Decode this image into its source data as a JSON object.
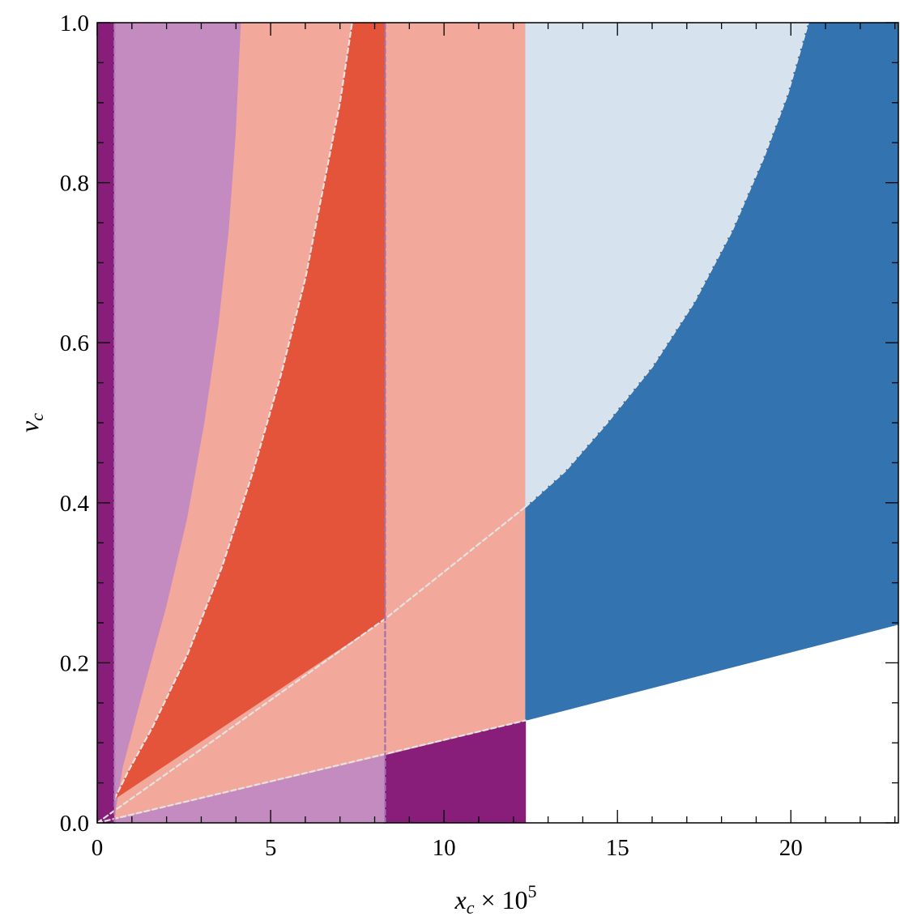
{
  "chart_data": {
    "type": "region",
    "xlabel": {
      "var": "x",
      "sub": "c",
      "rest": " × 10",
      "sup": "5"
    },
    "ylabel": {
      "var": "v",
      "sub": "c"
    },
    "xlim": [
      0,
      23.1
    ],
    "ylim": [
      0,
      1.0
    ],
    "x_ticks": [
      0,
      5,
      10,
      15,
      20
    ],
    "x_tick_labels": [
      "0",
      "5",
      "10",
      "15",
      "20"
    ],
    "y_ticks": [
      0,
      0.2,
      0.4,
      0.6,
      0.8,
      1.0
    ],
    "y_tick_labels": [
      "0.0",
      "0.2",
      "0.4",
      "0.6",
      "0.8",
      "1.0"
    ],
    "grid": false,
    "colors": {
      "dark_purple": "#881e7a",
      "light_purple": "#c38bbf",
      "light_salmon": "#f2a99b",
      "red_orange": "#e4543a",
      "light_blue": "#d6e2ee",
      "dark_blue": "#3273b0",
      "white": "#ffffff"
    },
    "regions": [
      {
        "name": "dark-purple-left-strip",
        "color": "dark_purple",
        "polygon": [
          [
            0,
            0
          ],
          [
            0.5,
            0
          ],
          [
            0.5,
            1.0
          ],
          [
            0,
            1.0
          ]
        ]
      },
      {
        "name": "light-purple-band",
        "color": "light_purple",
        "polygon": [
          [
            0.5,
            0
          ],
          [
            8.3,
            0
          ],
          [
            8.3,
            0.085
          ],
          [
            0.5,
            0.005
          ],
          [
            0.75,
            0.07
          ],
          [
            1.3,
            0.16
          ],
          [
            2.0,
            0.27
          ],
          [
            2.6,
            0.38
          ],
          [
            3.1,
            0.5
          ],
          [
            3.5,
            0.62
          ],
          [
            3.8,
            0.74
          ],
          [
            4.0,
            0.86
          ],
          [
            4.15,
            1.0
          ],
          [
            0.5,
            1.0
          ]
        ]
      },
      {
        "name": "dark-purple-bottom-block",
        "color": "dark_purple",
        "polygon": [
          [
            8.3,
            0
          ],
          [
            12.35,
            0
          ],
          [
            12.35,
            0.128
          ],
          [
            8.3,
            0.085
          ]
        ]
      },
      {
        "name": "salmon-region",
        "color": "light_salmon",
        "polygon": [
          [
            0.5,
            0.005
          ],
          [
            8.3,
            0.085
          ],
          [
            12.35,
            0.128
          ],
          [
            12.35,
            1.0
          ],
          [
            4.15,
            1.0
          ],
          [
            4.0,
            0.86
          ],
          [
            3.8,
            0.74
          ],
          [
            3.5,
            0.62
          ],
          [
            3.1,
            0.5
          ],
          [
            2.6,
            0.38
          ],
          [
            2.0,
            0.27
          ],
          [
            1.3,
            0.16
          ],
          [
            0.75,
            0.07
          ]
        ]
      },
      {
        "name": "red-orange-region",
        "color": "red_orange",
        "polygon": [
          [
            0.5,
            0.03
          ],
          [
            8.3,
            0.255
          ],
          [
            8.3,
            1.0
          ],
          [
            7.35,
            1.0
          ],
          [
            7.0,
            0.9
          ],
          [
            6.5,
            0.79
          ],
          [
            6.0,
            0.68
          ],
          [
            5.3,
            0.56
          ],
          [
            4.5,
            0.44
          ],
          [
            3.6,
            0.32
          ],
          [
            2.6,
            0.21
          ],
          [
            1.6,
            0.12
          ],
          [
            0.9,
            0.065
          ]
        ]
      },
      {
        "name": "light-blue-region",
        "color": "light_blue",
        "polygon": [
          [
            12.35,
            0.395
          ],
          [
            13.5,
            0.44
          ],
          [
            14.7,
            0.5
          ],
          [
            16.0,
            0.57
          ],
          [
            17.2,
            0.65
          ],
          [
            18.3,
            0.74
          ],
          [
            19.2,
            0.83
          ],
          [
            19.9,
            0.91
          ],
          [
            20.5,
            1.0
          ],
          [
            12.35,
            1.0
          ]
        ]
      },
      {
        "name": "dark-blue-region",
        "color": "dark_blue",
        "polygon": [
          [
            12.35,
            0.128
          ],
          [
            23.1,
            0.248
          ],
          [
            23.1,
            1.0
          ],
          [
            20.5,
            1.0
          ],
          [
            19.9,
            0.91
          ],
          [
            19.2,
            0.83
          ],
          [
            18.3,
            0.74
          ],
          [
            17.2,
            0.65
          ],
          [
            16.0,
            0.57
          ],
          [
            14.7,
            0.5
          ],
          [
            13.5,
            0.44
          ],
          [
            12.35,
            0.395
          ]
        ]
      }
    ],
    "boundary_lines": [
      {
        "name": "dashed-line-high-slope",
        "color": "#e3e3e3",
        "dash": true,
        "points": [
          [
            0.5,
            0.03
          ],
          [
            0.9,
            0.065
          ],
          [
            1.6,
            0.12
          ],
          [
            2.6,
            0.21
          ],
          [
            3.6,
            0.32
          ],
          [
            4.5,
            0.44
          ],
          [
            5.3,
            0.56
          ],
          [
            6.0,
            0.68
          ],
          [
            6.5,
            0.79
          ],
          [
            7.0,
            0.9
          ],
          [
            7.35,
            1.0
          ]
        ]
      },
      {
        "name": "dashed-line-mid-slope",
        "color": "#e3e3e3",
        "dash": true,
        "points": [
          [
            0,
            0
          ],
          [
            8.3,
            0.255
          ],
          [
            12.35,
            0.395
          ]
        ]
      },
      {
        "name": "dashed-line-low-slope",
        "color": "#e3e3e3",
        "dash": true,
        "points": [
          [
            0,
            0
          ],
          [
            12.35,
            0.128
          ]
        ]
      },
      {
        "name": "dashed-line-blue-boundary",
        "color": "#e3e3e3",
        "dash": true,
        "points": [
          [
            12.35,
            0.395
          ],
          [
            13.5,
            0.44
          ],
          [
            14.7,
            0.5
          ],
          [
            16.0,
            0.57
          ],
          [
            17.2,
            0.65
          ],
          [
            18.3,
            0.74
          ],
          [
            19.2,
            0.83
          ],
          [
            19.9,
            0.91
          ],
          [
            20.5,
            1.0
          ]
        ]
      },
      {
        "name": "dashed-vertical-x0-5",
        "color": "#b07ab4",
        "dash": true,
        "points": [
          [
            0.5,
            0
          ],
          [
            0.5,
            1.0
          ]
        ]
      },
      {
        "name": "dashed-vertical-x8-3",
        "color": "#a070b0",
        "dash": true,
        "points": [
          [
            8.3,
            0
          ],
          [
            8.3,
            1.0
          ]
        ]
      }
    ]
  }
}
